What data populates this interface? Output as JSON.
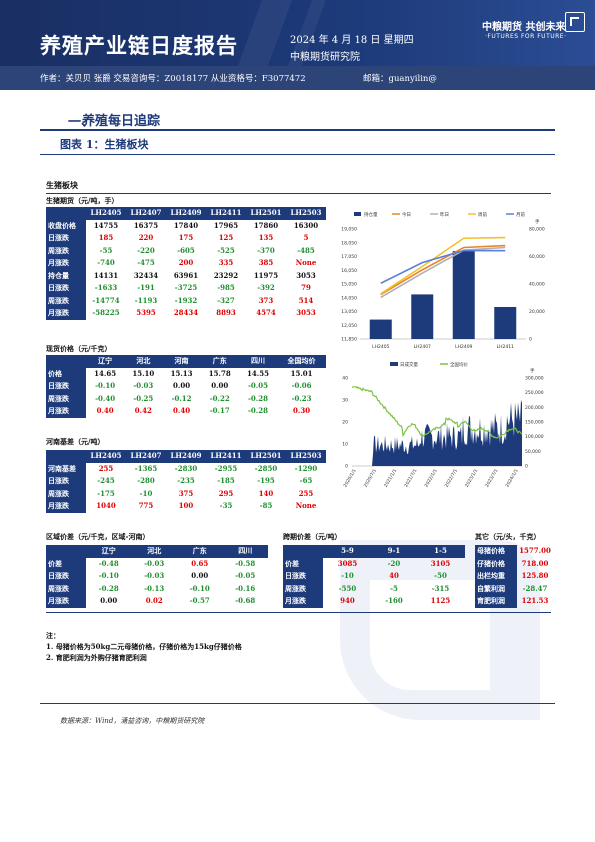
{
  "header": {
    "title": "养殖产业链日度报告",
    "date": "2024 年 4 月 18 日 星期四",
    "institute": "中粮期货研究院",
    "logo_cn": "中粮期货  共创未来",
    "logo_en": "·FUTURES FOR FUTURE·"
  },
  "authors": {
    "text": "作者：关贝贝  张爵  交易咨询号：Z0018177 从业资格号：F3077472",
    "email": "邮箱：guanyilin@"
  },
  "section": {
    "num": "一、",
    "title": "养殖每日追踪"
  },
  "figure": {
    "title": "图表 1：生猪板块"
  },
  "panel_title": "生猪板块",
  "futures": {
    "label": "生猪期货（元/吨，手）",
    "headers": [
      "",
      "LH2405",
      "LH2407",
      "LH2409",
      "LH2411",
      "LH2501",
      "LH2503"
    ],
    "rows": [
      {
        "label": "收盘价格",
        "values": [
          "14755",
          "16375",
          "17840",
          "17965",
          "17860",
          "16300"
        ],
        "colors": [
          "blk",
          "blk",
          "blk",
          "blk",
          "blk",
          "blk"
        ]
      },
      {
        "label": "日涨跌",
        "values": [
          "185",
          "220",
          "175",
          "125",
          "135",
          "5"
        ],
        "colors": [
          "red",
          "red",
          "red",
          "red",
          "red",
          "red"
        ]
      },
      {
        "label": "周涨跌",
        "values": [
          "-55",
          "-220",
          "-605",
          "-525",
          "-370",
          "-485"
        ],
        "colors": [
          "grn",
          "grn",
          "grn",
          "grn",
          "grn",
          "grn"
        ]
      },
      {
        "label": "月涨跌",
        "values": [
          "-740",
          "-475",
          "200",
          "335",
          "385",
          "None"
        ],
        "colors": [
          "grn",
          "grn",
          "red",
          "red",
          "red",
          "red"
        ]
      },
      {
        "label": "持仓量",
        "values": [
          "14131",
          "32434",
          "63961",
          "23292",
          "11975",
          "3053"
        ],
        "colors": [
          "blk",
          "blk",
          "blk",
          "blk",
          "blk",
          "blk"
        ]
      },
      {
        "label": "日涨跌",
        "values": [
          "-1633",
          "-191",
          "-3725",
          "-985",
          "-392",
          "79"
        ],
        "colors": [
          "grn",
          "grn",
          "grn",
          "grn",
          "grn",
          "red"
        ]
      },
      {
        "label": "周涨跌",
        "values": [
          "-14774",
          "-1193",
          "-1932",
          "-327",
          "373",
          "514"
        ],
        "colors": [
          "grn",
          "grn",
          "grn",
          "grn",
          "red",
          "red"
        ]
      },
      {
        "label": "月涨跌",
        "values": [
          "-58225",
          "5395",
          "28434",
          "8893",
          "4574",
          "3053"
        ],
        "colors": [
          "grn",
          "red",
          "red",
          "red",
          "red",
          "red"
        ]
      }
    ]
  },
  "spot": {
    "label": "现货价格（元/千克）",
    "headers": [
      "",
      "辽宁",
      "河北",
      "河南",
      "广东",
      "四川",
      "全国均价"
    ],
    "rows": [
      {
        "label": "价格",
        "values": [
          "14.65",
          "15.10",
          "15.13",
          "15.78",
          "14.55",
          "15.01"
        ],
        "colors": [
          "blk",
          "blk",
          "blk",
          "blk",
          "blk",
          "blk"
        ]
      },
      {
        "label": "日涨跌",
        "values": [
          "-0.10",
          "-0.03",
          "0.00",
          "0.00",
          "-0.05",
          "-0.06"
        ],
        "colors": [
          "grn",
          "grn",
          "blk",
          "blk",
          "grn",
          "grn"
        ]
      },
      {
        "label": "周涨跌",
        "values": [
          "-0.40",
          "-0.25",
          "-0.12",
          "-0.22",
          "-0.28",
          "-0.23"
        ],
        "colors": [
          "grn",
          "grn",
          "grn",
          "grn",
          "grn",
          "grn"
        ]
      },
      {
        "label": "月涨跌",
        "values": [
          "0.40",
          "0.42",
          "0.40",
          "-0.17",
          "-0.28",
          "0.30"
        ],
        "colors": [
          "red",
          "red",
          "red",
          "grn",
          "grn",
          "red"
        ]
      }
    ]
  },
  "basis": {
    "label": "河南基差（元/吨）",
    "headers": [
      "",
      "LH2405",
      "LH2407",
      "LH2409",
      "LH2411",
      "LH2501",
      "LH2503"
    ],
    "rows": [
      {
        "label": "河南基差",
        "values": [
          "255",
          "-1365",
          "-2830",
          "-2955",
          "-2850",
          "-1290"
        ],
        "colors": [
          "red",
          "grn",
          "grn",
          "grn",
          "grn",
          "grn"
        ]
      },
      {
        "label": "日涨跌",
        "values": [
          "-245",
          "-280",
          "-235",
          "-185",
          "-195",
          "-65"
        ],
        "colors": [
          "grn",
          "grn",
          "grn",
          "grn",
          "grn",
          "grn"
        ]
      },
      {
        "label": "周涨跌",
        "values": [
          "-175",
          "-10",
          "375",
          "295",
          "140",
          "255"
        ],
        "colors": [
          "grn",
          "grn",
          "red",
          "red",
          "red",
          "red"
        ]
      },
      {
        "label": "月涨跌",
        "values": [
          "1040",
          "775",
          "100",
          "-35",
          "-85",
          "None"
        ],
        "colors": [
          "red",
          "red",
          "red",
          "grn",
          "grn",
          "red"
        ]
      }
    ]
  },
  "region": {
    "label": "区域价差（元/千克，区域-河南）",
    "headers": [
      "",
      "辽宁",
      "河北",
      "广东",
      "四川"
    ],
    "rows": [
      {
        "label": "价差",
        "values": [
          "-0.48",
          "-0.03",
          "0.65",
          "-0.58"
        ],
        "colors": [
          "grn",
          "grn",
          "red",
          "grn"
        ]
      },
      {
        "label": "日涨跌",
        "values": [
          "-0.10",
          "-0.03",
          "0.00",
          "-0.05"
        ],
        "colors": [
          "grn",
          "grn",
          "blk",
          "grn"
        ]
      },
      {
        "label": "周涨跌",
        "values": [
          "-0.28",
          "-0.13",
          "-0.10",
          "-0.16"
        ],
        "colors": [
          "grn",
          "grn",
          "grn",
          "grn"
        ]
      },
      {
        "label": "月涨跌",
        "values": [
          "0.00",
          "0.02",
          "-0.57",
          "-0.68"
        ],
        "colors": [
          "blk",
          "red",
          "grn",
          "grn"
        ]
      }
    ]
  },
  "spread": {
    "label": "跨期价差（元/吨）",
    "headers": [
      "",
      "5-9",
      "9-1",
      "1-5"
    ],
    "rows": [
      {
        "label": "价差",
        "values": [
          "3085",
          "-20",
          "3105"
        ],
        "colors": [
          "red",
          "grn",
          "red"
        ]
      },
      {
        "label": "日涨跌",
        "values": [
          "-10",
          "40",
          "-50"
        ],
        "colors": [
          "grn",
          "red",
          "grn"
        ]
      },
      {
        "label": "周涨跌",
        "values": [
          "-550",
          "-5",
          "-315"
        ],
        "colors": [
          "grn",
          "grn",
          "grn"
        ]
      },
      {
        "label": "月涨跌",
        "values": [
          "940",
          "-160",
          "1125"
        ],
        "colors": [
          "red",
          "grn",
          "red"
        ]
      }
    ]
  },
  "other": {
    "label": "其它（元/头，千克）",
    "rows": [
      {
        "label": "母猪价格",
        "value": "1577.00",
        "color": "red"
      },
      {
        "label": "仔猪价格",
        "value": "718.00",
        "color": "red"
      },
      {
        "label": "出栏均重",
        "value": "125.80",
        "color": "red"
      },
      {
        "label": "自繁利润",
        "value": "-28.47",
        "color": "grn"
      },
      {
        "label": "育肥利润",
        "value": "121.53",
        "color": "red"
      }
    ]
  },
  "notes": {
    "title": "注：",
    "lines": [
      "1. 母猪价格为50kg二元母猪价格，仔猪价格为15kg仔猪价格",
      "2. 育肥利润为外购仔猪育肥利润"
    ]
  },
  "source": "数据来源：Wind，涌益咨询，中粮期货研究院",
  "chart_data": [
    {
      "type": "bar",
      "categories": [
        "LH2405",
        "LH2407",
        "LH2409",
        "LH2411"
      ],
      "bar_series": {
        "name": "持仓量",
        "values": [
          14131,
          32434,
          63961,
          23292
        ],
        "color": "#1d3a7a"
      },
      "line_series": [
        {
          "name": "今日",
          "values": [
            14755,
            16375,
            17840,
            17965
          ],
          "color": "#e8852c"
        },
        {
          "name": "昨日",
          "values": [
            14570,
            16155,
            17665,
            17840
          ],
          "color": "#b0b0b0"
        },
        {
          "name": "周前",
          "values": [
            14810,
            16595,
            18445,
            18490
          ],
          "color": "#f2c12e"
        },
        {
          "name": "月前",
          "values": [
            15495,
            16850,
            17640,
            17630
          ],
          "color": "#5b7fd6"
        }
      ],
      "y_left": {
        "min": 11850,
        "max": 19050,
        "ticks": [
          "19,050",
          "18,050",
          "17,050",
          "16,050",
          "15,050",
          "14,050",
          "13,050",
          "12,050",
          "11,850"
        ]
      },
      "y_right": {
        "min": 0,
        "max": 80000,
        "ticks": [
          "80,000",
          "60,000",
          "40,000",
          "20,000",
          "0"
        ]
      },
      "y_right_label": "手",
      "legend": [
        "持仓量",
        "今日",
        "昨日",
        "周前",
        "月前"
      ]
    },
    {
      "type": "area",
      "series": [
        {
          "name": "日成交量",
          "color": "#1d3a7a",
          "axis": "right"
        },
        {
          "name": "全国均价",
          "color": "#7cc242",
          "axis": "left"
        }
      ],
      "x_ticks": [
        "2020/1/1",
        "2020/7/1",
        "2021/1/1",
        "2021/7/1",
        "2022/1/1",
        "2022/7/1",
        "2023/1/1",
        "2023/7/1",
        "2024/1/1"
      ],
      "y_left": {
        "min": 0,
        "max": 40,
        "ticks": [
          "40",
          "30",
          "20",
          "10",
          "0"
        ]
      },
      "y_right": {
        "min": 0,
        "max": 300000,
        "ticks": [
          "300,000",
          "250,000",
          "200,000",
          "150,000",
          "100,000",
          "50,000",
          "0"
        ]
      },
      "y_right_label": "手",
      "legend": [
        "日成交量",
        "全国均价"
      ]
    }
  ]
}
